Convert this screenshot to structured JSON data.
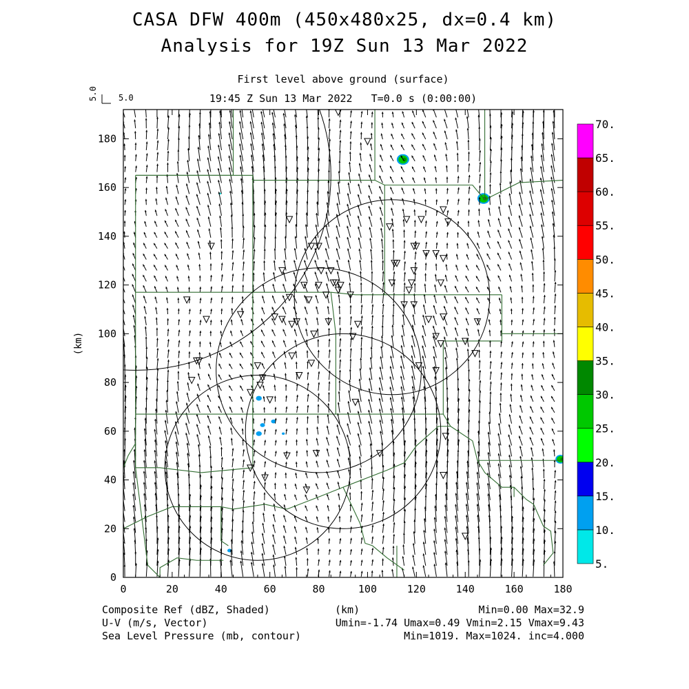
{
  "titles": {
    "main": "CASA DFW 400m (450x480x25, dx=0.4 km)",
    "sub": "Analysis for 19Z Sun 13 Mar 2022",
    "level": "First level above ground (surface)",
    "time": "19:45 Z Sun 13 Mar 2022   T=0.0 s (0:00:00)"
  },
  "reference_vector": {
    "label": "5.0",
    "scale": "5.0"
  },
  "footer": {
    "field1": "Composite Ref (dBZ, Shaded)",
    "field2": "U-V (m/s, Vector)",
    "field3": "Sea Level Pressure (mb, contour)",
    "xunit": "(km)",
    "stats1": "Min=0.00 Max=32.9",
    "stats2": "Umin=-1.74 Umax=0.49 Vmin=2.15 Vmax=9.43",
    "stats3": "Min=1019. Max=1024. inc=4.000"
  },
  "colors": {
    "boundary": "#2f6b2f",
    "contour": "#000000",
    "radar_marker": "#000000"
  },
  "chart_data": {
    "type": "heatmap",
    "xlabel": "",
    "ylabel": "(km)",
    "xlim": [
      0,
      180
    ],
    "ylim": [
      0,
      192
    ],
    "xticks": [
      0,
      20,
      40,
      60,
      80,
      100,
      120,
      140,
      160,
      180
    ],
    "yticks": [
      0,
      20,
      40,
      60,
      80,
      100,
      120,
      140,
      160,
      180
    ],
    "colorbar": {
      "levels": [
        5,
        10,
        15,
        20,
        25,
        30,
        35,
        40,
        45,
        50,
        55,
        60,
        65,
        70
      ],
      "labels": [
        "5.",
        "10.",
        "15.",
        "20.",
        "25.",
        "30.",
        "35.",
        "40.",
        "45.",
        "50.",
        "55.",
        "60.",
        "65.",
        "70."
      ],
      "colors": [
        "#00e8e8",
        "#00a0f0",
        "#0000f0",
        "#00ff00",
        "#00c800",
        "#008800",
        "#ffff00",
        "#e6bc00",
        "#ff8c00",
        "#ff0000",
        "#dd0000",
        "#c00000",
        "#ff00ff"
      ]
    },
    "reflectivity_cells": [
      {
        "x": 114.5,
        "y": 171.5,
        "r": 2.2,
        "dbz": 25
      },
      {
        "x": 147.5,
        "y": 155.5,
        "r": 2.2,
        "dbz": 25
      },
      {
        "x": 179,
        "y": 48.5,
        "r": 1.8,
        "dbz": 25
      },
      {
        "x": 55.5,
        "y": 73.5,
        "r": 1.2,
        "dbz": 10
      },
      {
        "x": 57.0,
        "y": 62.5,
        "r": 1.0,
        "dbz": 10
      },
      {
        "x": 55.5,
        "y": 59.0,
        "r": 1.2,
        "dbz": 10
      },
      {
        "x": 61.5,
        "y": 64.0,
        "r": 1.0,
        "dbz": 10
      },
      {
        "x": 65.5,
        "y": 59.0,
        "r": 0.6,
        "dbz": 10
      },
      {
        "x": 43.5,
        "y": 11.0,
        "r": 0.9,
        "dbz": 10
      },
      {
        "x": 39.5,
        "y": 157.5,
        "r": 0.5,
        "dbz": 5
      }
    ],
    "range_rings": [
      {
        "cx": 80,
        "cy": 85,
        "r": 42
      },
      {
        "cx": 110,
        "cy": 115,
        "r": 40
      },
      {
        "cx": 90,
        "cy": 60,
        "r": 40
      },
      {
        "cx": 55,
        "cy": 45,
        "r": 38
      },
      {
        "cx": 5,
        "cy": 165,
        "r": 80
      }
    ],
    "wind": {
      "u_range": [
        -1.74,
        0.49
      ],
      "v_range": [
        2.15,
        9.43
      ],
      "grid_spacing_km": 4.4
    },
    "radar_sites": [
      [
        88,
        191
      ],
      [
        100,
        179
      ],
      [
        68,
        147
      ],
      [
        116,
        147
      ],
      [
        122,
        147
      ],
      [
        131,
        151
      ],
      [
        133,
        146
      ],
      [
        36,
        136
      ],
      [
        77,
        136
      ],
      [
        80,
        136
      ],
      [
        109,
        144
      ],
      [
        119,
        136
      ],
      [
        120,
        136
      ],
      [
        124,
        133
      ],
      [
        128,
        133
      ],
      [
        131,
        131
      ],
      [
        65,
        126
      ],
      [
        81,
        126
      ],
      [
        85,
        126
      ],
      [
        111,
        129
      ],
      [
        112,
        129
      ],
      [
        119,
        126
      ],
      [
        74,
        120
      ],
      [
        80,
        120
      ],
      [
        86,
        121
      ],
      [
        87,
        121
      ],
      [
        89,
        120
      ],
      [
        88,
        118
      ],
      [
        110,
        121
      ],
      [
        118,
        121
      ],
      [
        117,
        118
      ],
      [
        130,
        121
      ],
      [
        68,
        115
      ],
      [
        76,
        114
      ],
      [
        83,
        116
      ],
      [
        93,
        116
      ],
      [
        115,
        112
      ],
      [
        119,
        112
      ],
      [
        26,
        114
      ],
      [
        34,
        106
      ],
      [
        48,
        108
      ],
      [
        62,
        107
      ],
      [
        65,
        106
      ],
      [
        69,
        104
      ],
      [
        71,
        105
      ],
      [
        84,
        105
      ],
      [
        78,
        100
      ],
      [
        96,
        104
      ],
      [
        94,
        99
      ],
      [
        125,
        106
      ],
      [
        131,
        107
      ],
      [
        145,
        105
      ],
      [
        128,
        99
      ],
      [
        130,
        96
      ],
      [
        140,
        97
      ],
      [
        144,
        92
      ],
      [
        30,
        89
      ],
      [
        31,
        89
      ],
      [
        69,
        91
      ],
      [
        77,
        88
      ],
      [
        121,
        87
      ],
      [
        128,
        85
      ],
      [
        55,
        87
      ],
      [
        28,
        81
      ],
      [
        57,
        82
      ],
      [
        52,
        76
      ],
      [
        56,
        79
      ],
      [
        60,
        73
      ],
      [
        72,
        83
      ],
      [
        95,
        72
      ],
      [
        67,
        50
      ],
      [
        79,
        51
      ],
      [
        52,
        45
      ],
      [
        105,
        51
      ],
      [
        132,
        58
      ],
      [
        131,
        42
      ],
      [
        58,
        41
      ],
      [
        75,
        36
      ],
      [
        140,
        17
      ]
    ],
    "boundaries": [
      [
        [
          5,
          165
        ],
        [
          5,
          117
        ],
        [
          5,
          67
        ],
        [
          5,
          45
        ],
        [
          10,
          5
        ],
        [
          15,
          0
        ]
      ],
      [
        [
          5,
          165
        ],
        [
          45,
          165
        ],
        [
          45,
          182
        ],
        [
          45,
          192
        ]
      ],
      [
        [
          5,
          165
        ],
        [
          45,
          165
        ],
        [
          53,
          165
        ],
        [
          53,
          117
        ],
        [
          53,
          67
        ],
        [
          53,
          45
        ]
      ],
      [
        [
          53,
          165
        ],
        [
          53,
          163
        ],
        [
          103,
          163
        ],
        [
          107,
          161
        ],
        [
          143,
          161
        ],
        [
          148,
          155
        ]
      ],
      [
        [
          103,
          192
        ],
        [
          103,
          163
        ]
      ],
      [
        [
          148,
          192
        ],
        [
          148,
          155
        ],
        [
          162,
          162
        ],
        [
          180,
          163
        ]
      ],
      [
        [
          5,
          117
        ],
        [
          53,
          117
        ],
        [
          85,
          117
        ],
        [
          95,
          116
        ],
        [
          105,
          116
        ],
        [
          110,
          116
        ],
        [
          155,
          116
        ]
      ],
      [
        [
          107,
          161
        ],
        [
          107,
          116
        ]
      ],
      [
        [
          155,
          116
        ],
        [
          155,
          100
        ],
        [
          155,
          97
        ],
        [
          131,
          97
        ],
        [
          131,
          67
        ]
      ],
      [
        [
          155,
          100
        ],
        [
          180,
          100
        ]
      ],
      [
        [
          85,
          117
        ],
        [
          87,
          100
        ],
        [
          87,
          67
        ]
      ],
      [
        [
          5,
          67
        ],
        [
          53,
          67
        ],
        [
          87,
          67
        ],
        [
          131,
          67
        ],
        [
          134,
          62
        ]
      ],
      [
        [
          134,
          62
        ],
        [
          143,
          56
        ],
        [
          145,
          48
        ],
        [
          180,
          48
        ]
      ],
      [
        [
          145,
          48
        ],
        [
          148,
          43
        ],
        [
          155,
          37
        ],
        [
          160,
          37
        ],
        [
          165,
          32
        ],
        [
          168,
          30
        ],
        [
          172,
          21
        ],
        [
          175,
          19
        ],
        [
          176,
          10
        ],
        [
          172,
          5
        ]
      ],
      [
        [
          160,
          37
        ],
        [
          160,
          33
        ]
      ],
      [
        [
          5,
          45
        ],
        [
          15,
          45
        ],
        [
          32,
          43
        ],
        [
          53,
          45
        ]
      ],
      [
        [
          0,
          20
        ],
        [
          10,
          25
        ],
        [
          20,
          29
        ],
        [
          40,
          29
        ],
        [
          45,
          28
        ],
        [
          58,
          30
        ],
        [
          67,
          28
        ],
        [
          80,
          33
        ],
        [
          90,
          37
        ],
        [
          108,
          44
        ],
        [
          115,
          47
        ],
        [
          120,
          54
        ],
        [
          129,
          62
        ],
        [
          134,
          62
        ]
      ],
      [
        [
          40,
          29
        ],
        [
          40,
          15
        ],
        [
          43,
          13
        ]
      ],
      [
        [
          90,
          37
        ],
        [
          97,
          22
        ],
        [
          99,
          14
        ],
        [
          102,
          13
        ],
        [
          108,
          8
        ],
        [
          115,
          3
        ]
      ],
      [
        [
          112,
          13
        ],
        [
          112,
          0
        ]
      ],
      [
        [
          0,
          45
        ],
        [
          2,
          50
        ],
        [
          5,
          55
        ]
      ],
      [
        [
          15,
          0
        ],
        [
          15,
          4
        ],
        [
          22,
          8
        ],
        [
          30,
          7
        ],
        [
          41,
          7
        ]
      ]
    ]
  }
}
